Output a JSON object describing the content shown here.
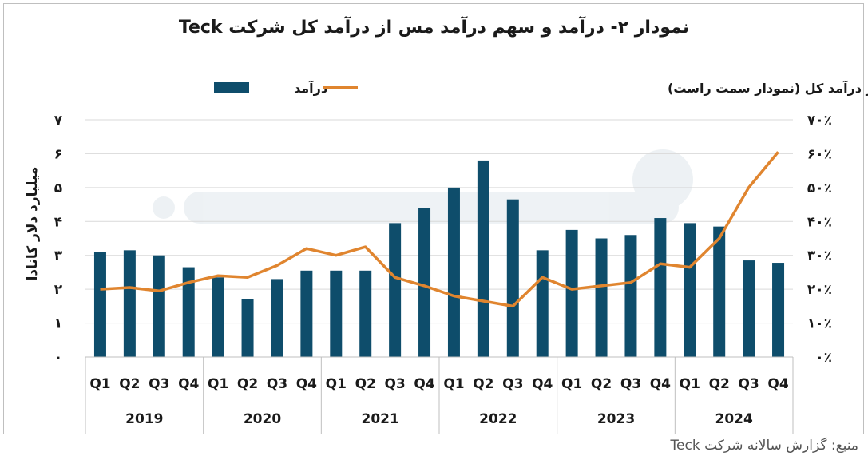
{
  "chart_data": {
    "type": "bar",
    "title": "نمودار ۲- درآمد و سهم درآمد مس از درآمد کل شرکت Teck",
    "ylabel_left": "میلیارد دلار کانادا",
    "left_axis_ticks": [
      "۰",
      "۱",
      "۲",
      "۳",
      "۴",
      "۵",
      "۶",
      "۷"
    ],
    "right_axis_ticks": [
      "۰٪",
      "۱۰٪",
      "۲۰٪",
      "۳۰٪",
      "۴۰٪",
      "۵۰٪",
      "۶۰٪",
      "۷۰٪"
    ],
    "ylim_left": [
      0,
      7
    ],
    "ylim_right": [
      0,
      70
    ],
    "years": [
      "2019",
      "2020",
      "2021",
      "2022",
      "2023",
      "2024"
    ],
    "quarters": [
      "Q1",
      "Q2",
      "Q3",
      "Q4"
    ],
    "legend_position": "top",
    "series": [
      {
        "name": "درآمد",
        "type": "bar",
        "axis": "left",
        "color": "#0e4d6b",
        "values": [
          3.1,
          3.15,
          3.0,
          2.65,
          2.35,
          1.7,
          2.3,
          2.55,
          2.55,
          2.55,
          3.95,
          4.4,
          5.0,
          5.8,
          4.65,
          3.15,
          3.75,
          3.5,
          3.6,
          4.1,
          3.95,
          3.85,
          2.85,
          2.78
        ]
      },
      {
        "name": "سهم درآمد مس از درآمد کل (نمودار سمت راست)",
        "type": "line",
        "axis": "right",
        "color": "#e0852f",
        "values": [
          20,
          20.5,
          19.5,
          22,
          24,
          23.5,
          27,
          32,
          30,
          32.5,
          23.5,
          21,
          18,
          16.5,
          15,
          23.5,
          20,
          21,
          22,
          27.5,
          26.5,
          35,
          50,
          60.5
        ]
      }
    ]
  },
  "source": "منبع: گزارش سالانه شرکت Teck"
}
